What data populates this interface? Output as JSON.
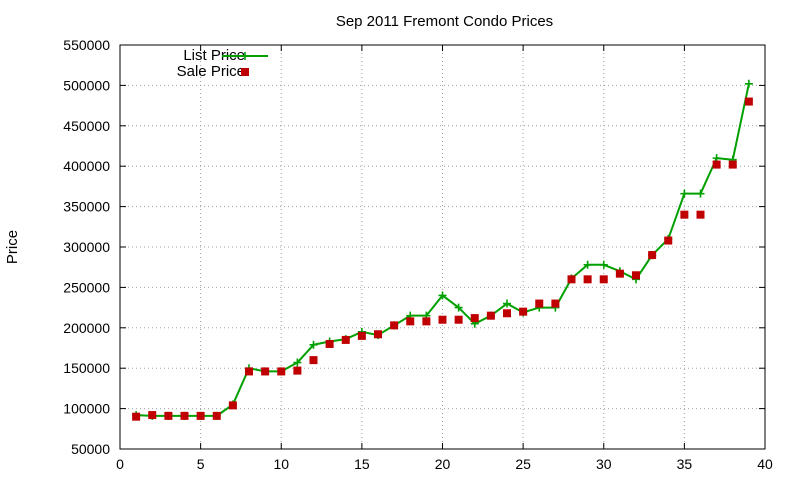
{
  "chart_data": {
    "type": "line",
    "title": "Sep 2011 Fremont Condo Prices",
    "xlabel": "",
    "ylabel": "Price",
    "xlim": [
      0,
      40
    ],
    "ylim": [
      50000,
      550000
    ],
    "xticks": [
      0,
      5,
      10,
      15,
      20,
      25,
      30,
      35,
      40
    ],
    "yticks": [
      50000,
      100000,
      150000,
      200000,
      250000,
      300000,
      350000,
      400000,
      450000,
      500000,
      550000
    ],
    "grid": true,
    "legend_position": "top-left",
    "series": [
      {
        "name": "List Price",
        "style": "lines+plus",
        "color": "#00a000",
        "x": [
          1,
          2,
          3,
          4,
          5,
          6,
          7,
          8,
          9,
          10,
          11,
          12,
          13,
          14,
          15,
          16,
          17,
          18,
          19,
          20,
          21,
          22,
          23,
          24,
          25,
          26,
          27,
          28,
          29,
          30,
          31,
          32,
          33,
          34,
          35,
          36,
          37,
          38,
          39
        ],
        "y": [
          92000,
          91000,
          91000,
          91000,
          91000,
          91000,
          105000,
          150000,
          146000,
          146000,
          157000,
          179000,
          183000,
          186000,
          195000,
          191000,
          203000,
          215000,
          215000,
          240000,
          225000,
          205000,
          215000,
          230000,
          219000,
          225000,
          225000,
          261000,
          278000,
          278000,
          270000,
          260000,
          290000,
          310000,
          366000,
          366000,
          410000,
          408000,
          502000
        ]
      },
      {
        "name": "Sale Price",
        "style": "points",
        "color": "#c00000",
        "x": [
          1,
          2,
          3,
          4,
          5,
          6,
          7,
          8,
          9,
          10,
          11,
          12,
          13,
          14,
          15,
          16,
          17,
          18,
          19,
          20,
          21,
          22,
          23,
          24,
          25,
          26,
          27,
          28,
          29,
          30,
          31,
          32,
          33,
          34,
          35,
          36,
          37,
          38,
          39
        ],
        "y": [
          90000,
          92000,
          91000,
          91000,
          91000,
          91000,
          104000,
          146000,
          146000,
          146000,
          147000,
          160000,
          180000,
          185000,
          190000,
          192000,
          203000,
          208000,
          208000,
          210000,
          210000,
          212000,
          215000,
          218000,
          220000,
          230000,
          230000,
          260000,
          260000,
          260000,
          267000,
          265000,
          290000,
          308000,
          340000,
          340000,
          402000,
          402000,
          480000
        ]
      }
    ]
  }
}
